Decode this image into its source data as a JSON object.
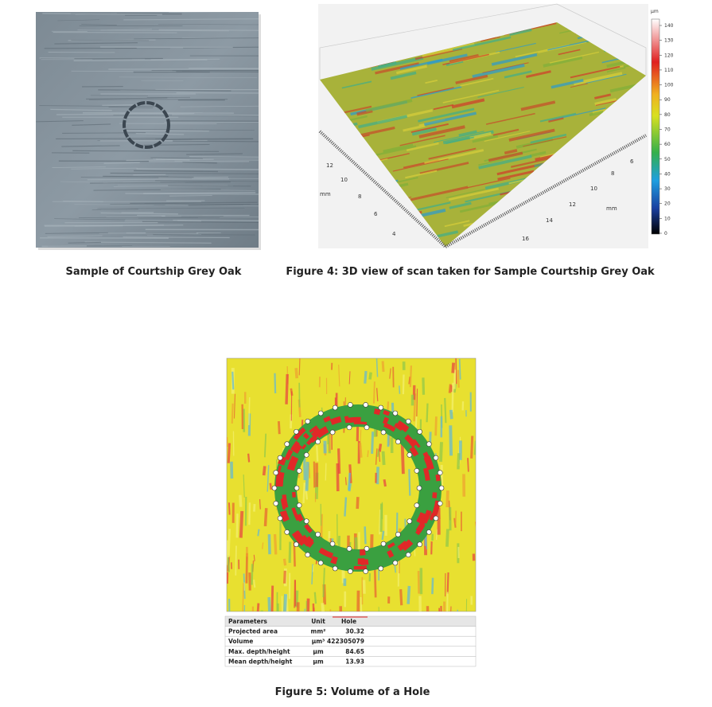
{
  "figures": [
    {
      "caption": "Sample of Courtship Grey Oak"
    },
    {
      "caption": "Figure 4: 3D view of scan taken for Sample Courtship Grey Oak",
      "colorbar": {
        "unit": "µm",
        "ticks": [
          "140",
          "130",
          "120",
          "110",
          "100",
          "90",
          "80",
          "70",
          "60",
          "50",
          "40",
          "30",
          "20",
          "10",
          "0"
        ]
      },
      "left_axis": [
        "12",
        "10",
        "8",
        "6",
        "4",
        "mm"
      ],
      "right_axis": [
        "16",
        "14",
        "12",
        "10",
        "8",
        "6",
        "mm"
      ]
    },
    {
      "caption": "Figure 5: Volume of a Hole"
    }
  ],
  "table": {
    "header": [
      "Parameters",
      "Unit",
      "Hole"
    ],
    "rows": [
      [
        "Projected area",
        "mm²",
        "30.32"
      ],
      [
        "Volume",
        "µm³",
        "422305079"
      ],
      [
        "Max. depth/height",
        "µm",
        "84.65"
      ],
      [
        "Mean depth/height",
        "µm",
        "13.93"
      ]
    ]
  }
}
